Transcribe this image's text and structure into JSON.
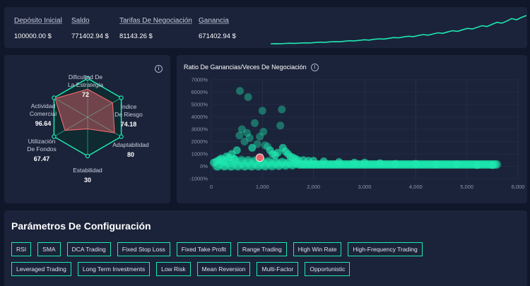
{
  "summary": {
    "stats": [
      {
        "label": "Depósito Inicial",
        "value": "100000.00 $"
      },
      {
        "label": "Saldo",
        "value": "771402.94 $"
      },
      {
        "label": "Tarifas De Negociación",
        "value": "81143.26 $"
      },
      {
        "label": "Ganancia",
        "value": "671402.94 $"
      }
    ],
    "sparkline_color": "#1ee8b0"
  },
  "radar": {
    "info_icon": "info-icon",
    "axes": [
      {
        "label_lines": [
          "Dificultad De",
          "La Estrategia"
        ],
        "value": "72"
      },
      {
        "label_lines": [
          "Índice",
          "De Riesgo"
        ],
        "value": "74.18"
      },
      {
        "label_lines": [
          "Adaptabilidad"
        ],
        "value": "80"
      },
      {
        "label_lines": [
          "Estabilidad"
        ],
        "value": "30"
      },
      {
        "label_lines": [
          "Utilización",
          "De Fondos"
        ],
        "value": "67.47"
      },
      {
        "label_lines": [
          "Actividad",
          "Comercial"
        ],
        "value": "96.64"
      }
    ],
    "grid_color": "#1ee8b0",
    "fill_color": "#e8646c"
  },
  "ratio_chart": {
    "title": "Ratio De Ganancias/Veces De Negociación",
    "info_icon": "info-icon",
    "y_ticks": [
      "7000%",
      "6000%",
      "5000%",
      "4000%",
      "3000%",
      "2000%",
      "1000%",
      "0%",
      "-1000%"
    ],
    "x_ticks": [
      "0",
      "1,000",
      "2,000",
      "3,000",
      "4,000",
      "5,000",
      "6,000"
    ],
    "point_color": "#1ee8b0",
    "highlight_color": "#e8646c"
  },
  "params": {
    "title": "Parámetros De Configuración",
    "rows": [
      [
        "RSI",
        "SMA",
        "DCA Trading",
        "Fixed Stop Loss",
        "Fixed Take Profit",
        "Range Trading",
        "High Win Rate",
        "High-Frequency Trading"
      ],
      [
        "Leveraged Trading",
        "Long Term Investments",
        "Low Risk",
        "Mean Reversion",
        "Multi-Factor",
        "Opportunistic"
      ]
    ]
  },
  "chart_data": [
    {
      "type": "scatter",
      "title": "Ratio De Ganancias/Veces De Negociación",
      "xlabel": "",
      "ylabel": "",
      "xlim": [
        0,
        6000
      ],
      "ylim": [
        -1000,
        7000
      ],
      "y_unit": "%",
      "grid": true,
      "highlight_point": {
        "x": 950,
        "y": 700
      },
      "points": [
        [
          50,
          300
        ],
        [
          100,
          400
        ],
        [
          150,
          500
        ],
        [
          200,
          600
        ],
        [
          250,
          350
        ],
        [
          300,
          800
        ],
        [
          350,
          700
        ],
        [
          400,
          1000
        ],
        [
          450,
          600
        ],
        [
          500,
          1300
        ],
        [
          550,
          2500
        ],
        [
          560,
          6100
        ],
        [
          600,
          3000
        ],
        [
          650,
          2000
        ],
        [
          700,
          2700
        ],
        [
          720,
          5600
        ],
        [
          750,
          2300
        ],
        [
          800,
          1500
        ],
        [
          850,
          3500
        ],
        [
          900,
          1800
        ],
        [
          950,
          2400
        ],
        [
          1000,
          4500
        ],
        [
          1020,
          2800
        ],
        [
          1050,
          1700
        ],
        [
          1100,
          1600
        ],
        [
          1150,
          1300
        ],
        [
          1200,
          1000
        ],
        [
          1250,
          900
        ],
        [
          1300,
          1100
        ],
        [
          1350,
          3300
        ],
        [
          1380,
          4600
        ],
        [
          1400,
          1500
        ],
        [
          1450,
          1200
        ],
        [
          1500,
          1000
        ],
        [
          1550,
          800
        ],
        [
          1600,
          700
        ],
        [
          1650,
          600
        ],
        [
          1700,
          500
        ],
        [
          1800,
          500
        ],
        [
          1900,
          450
        ],
        [
          2000,
          450
        ],
        [
          2200,
          400
        ],
        [
          2500,
          350
        ],
        [
          2800,
          300
        ],
        [
          3000,
          300
        ],
        [
          3300,
          250
        ],
        [
          3600,
          200
        ],
        [
          4000,
          200
        ],
        [
          4400,
          150
        ],
        [
          4800,
          150
        ],
        [
          5200,
          100
        ],
        [
          5500,
          100
        ]
      ]
    },
    {
      "type": "line",
      "title": "",
      "series": [
        {
          "values": [
            100000,
            104000,
            101000,
            108000,
            113000,
            110000,
            118000,
            122000,
            120000,
            131000,
            139000,
            136000,
            145000,
            152000,
            149000,
            161000,
            172000,
            168000,
            180000,
            195000,
            188000,
            205000,
            218000,
            212000,
            230000,
            248000,
            241000,
            262000,
            280000,
            270000,
            296000,
            318000,
            305000,
            334000,
            360000,
            348000,
            382000,
            410000,
            396000,
            432000,
            466000,
            450000,
            492000,
            530000,
            512000,
            561000,
            610000,
            590000,
            640000,
            700000,
            671000,
            728000,
            771402
          ]
        }
      ]
    },
    {
      "type": "radar",
      "title": "",
      "categories": [
        "Dificultad De La Estrategia",
        "Índice De Riesgo",
        "Adaptabilidad",
        "Estabilidad",
        "Utilización De Fondos",
        "Actividad Comercial"
      ],
      "values": [
        72,
        74.18,
        80,
        30,
        67.47,
        96.64
      ],
      "max": 100
    }
  ]
}
